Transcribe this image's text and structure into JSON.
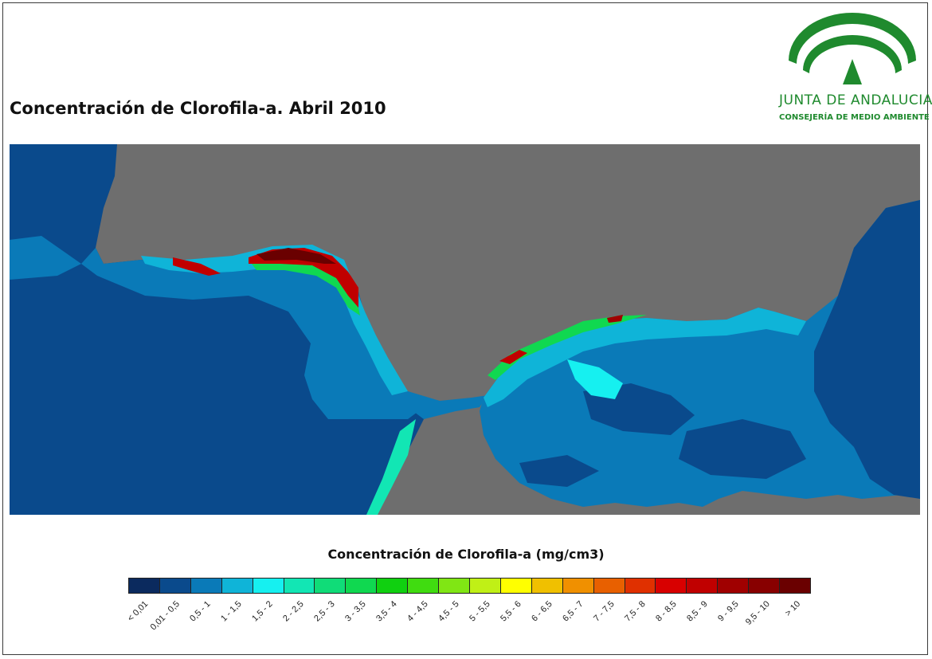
{
  "title": "Concentración de Clorofila-a. Abril 2010",
  "logo": {
    "name": "JUNTA DE ANDALUCIA",
    "subtitle": "CONSEJERÍA DE MEDIO AMBIENTE",
    "color": "#1f8a2e"
  },
  "map": {
    "land_color": "#6e6e6e",
    "ocean_color": "#0a4a8c"
  },
  "legend": {
    "title": "Concentración de Clorofila-a (mg/cm3)",
    "classes": [
      {
        "label": "< 0,01",
        "color": "#0b2a5e"
      },
      {
        "label": "0,01 - 0,5",
        "color": "#0a4a8c"
      },
      {
        "label": "0,5 - 1",
        "color": "#0a7ab8"
      },
      {
        "label": "1 - 1,5",
        "color": "#0fb4d8"
      },
      {
        "label": "1,5 - 2",
        "color": "#16f0f0"
      },
      {
        "label": "2 - 2,5",
        "color": "#12e6b4"
      },
      {
        "label": "2,5 - 3",
        "color": "#10dc78"
      },
      {
        "label": "3 - 3,5",
        "color": "#10d850"
      },
      {
        "label": "3,5 - 4",
        "color": "#10d010"
      },
      {
        "label": "4 - 4,5",
        "color": "#40dc10"
      },
      {
        "label": "4,5 - 5",
        "color": "#80e614"
      },
      {
        "label": "5 - 5,5",
        "color": "#c0f016"
      },
      {
        "label": "5,5 - 6",
        "color": "#ffff00"
      },
      {
        "label": "6 - 6,5",
        "color": "#f0c000"
      },
      {
        "label": "6,5 - 7",
        "color": "#f09000"
      },
      {
        "label": "7 - 7,5",
        "color": "#e86000"
      },
      {
        "label": "7,5 - 8",
        "color": "#e03000"
      },
      {
        "label": "8 - 8,5",
        "color": "#d80000"
      },
      {
        "label": "8,5 - 9",
        "color": "#c00000"
      },
      {
        "label": "9 - 9,5",
        "color": "#a00000"
      },
      {
        "label": "9,5 - 10",
        "color": "#880000"
      },
      {
        "label": "> 10",
        "color": "#6a0000"
      }
    ]
  }
}
